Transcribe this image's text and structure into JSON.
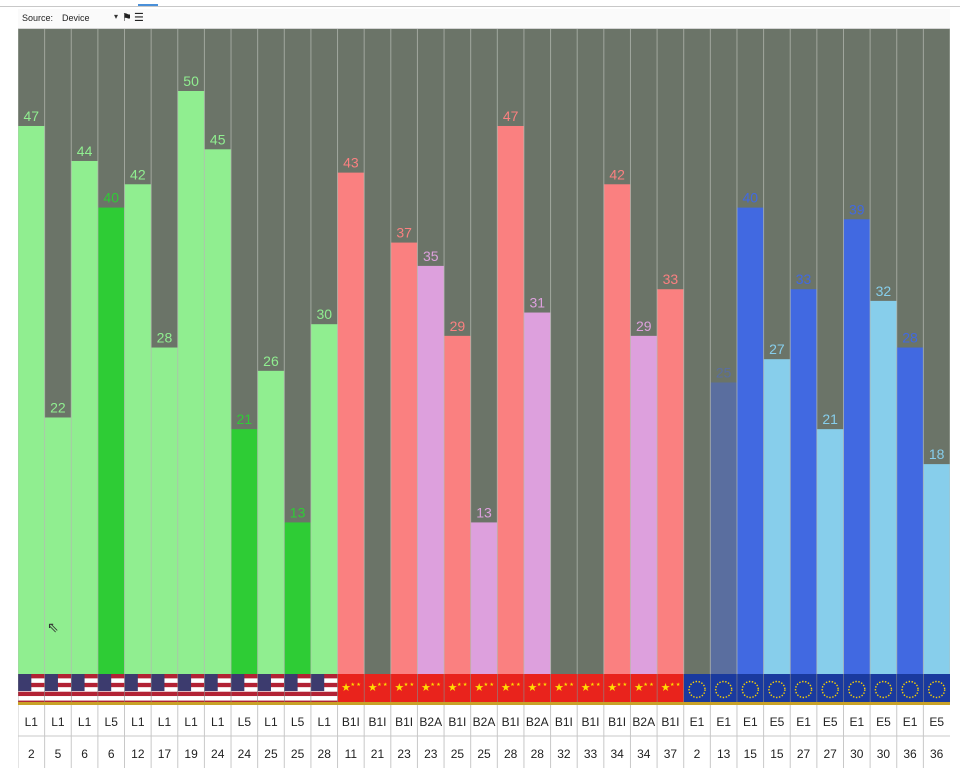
{
  "toolbar": {
    "source_label": "Source:",
    "source_value": "Device",
    "dropdown_icon": "chevron-down-icon",
    "tool_icons": [
      "flag-icon",
      "list-icon"
    ]
  },
  "colors": {
    "background": "#6b7468",
    "light_green": "#90ee90",
    "dark_green": "#2ecc35",
    "salmon": "#fa8080",
    "plum": "#dda0dd",
    "light_blue": "#87ceeb",
    "royal_blue": "#4169e1",
    "slate_blue": "#5a6e9f"
  },
  "chart_data": {
    "type": "bar",
    "ylim": [
      0,
      55
    ],
    "grid": "vertical column separators",
    "bars": [
      {
        "top": "L1",
        "bottom": "2",
        "value": 47,
        "color": "light_green",
        "flag": "us"
      },
      {
        "top": "L1",
        "bottom": "5",
        "value": 22,
        "color": "light_green",
        "flag": "us"
      },
      {
        "top": "L1",
        "bottom": "6",
        "value": 44,
        "color": "light_green",
        "flag": "us"
      },
      {
        "top": "L5",
        "bottom": "6",
        "value": 40,
        "color": "dark_green",
        "flag": "us"
      },
      {
        "top": "L1",
        "bottom": "12",
        "value": 42,
        "color": "light_green",
        "flag": "us"
      },
      {
        "top": "L1",
        "bottom": "17",
        "value": 28,
        "color": "light_green",
        "flag": "us"
      },
      {
        "top": "L1",
        "bottom": "19",
        "value": 50,
        "color": "light_green",
        "flag": "us"
      },
      {
        "top": "L1",
        "bottom": "24",
        "value": 45,
        "color": "light_green",
        "flag": "us"
      },
      {
        "top": "L5",
        "bottom": "24",
        "value": 21,
        "color": "dark_green",
        "flag": "us"
      },
      {
        "top": "L1",
        "bottom": "25",
        "value": 26,
        "color": "light_green",
        "flag": "us"
      },
      {
        "top": "L5",
        "bottom": "25",
        "value": 13,
        "color": "dark_green",
        "flag": "us"
      },
      {
        "top": "L1",
        "bottom": "28",
        "value": 30,
        "color": "light_green",
        "flag": "us"
      },
      {
        "top": "B1I",
        "bottom": "11",
        "value": 43,
        "color": "salmon",
        "flag": "cn"
      },
      {
        "top": "B1I",
        "bottom": "21",
        "value": null,
        "color": "salmon",
        "flag": "cn"
      },
      {
        "top": "B1I",
        "bottom": "23",
        "value": 37,
        "color": "salmon",
        "flag": "cn"
      },
      {
        "top": "B2A",
        "bottom": "23",
        "value": 35,
        "color": "plum",
        "flag": "cn"
      },
      {
        "top": "B1I",
        "bottom": "25",
        "value": 29,
        "color": "salmon",
        "flag": "cn"
      },
      {
        "top": "B2A",
        "bottom": "25",
        "value": 13,
        "color": "plum",
        "flag": "cn"
      },
      {
        "top": "B1I",
        "bottom": "28",
        "value": 47,
        "color": "salmon",
        "flag": "cn"
      },
      {
        "top": "B2A",
        "bottom": "28",
        "value": 31,
        "color": "plum",
        "flag": "cn"
      },
      {
        "top": "B1I",
        "bottom": "32",
        "value": null,
        "color": "salmon",
        "flag": "cn"
      },
      {
        "top": "B1I",
        "bottom": "33",
        "value": null,
        "color": "salmon",
        "flag": "cn"
      },
      {
        "top": "B1I",
        "bottom": "34",
        "value": 42,
        "color": "salmon",
        "flag": "cn"
      },
      {
        "top": "B2A",
        "bottom": "34",
        "value": 29,
        "color": "plum",
        "flag": "cn"
      },
      {
        "top": "B1I",
        "bottom": "37",
        "value": 33,
        "color": "salmon",
        "flag": "cn"
      },
      {
        "top": "E1",
        "bottom": "2",
        "value": null,
        "color": "royal_blue",
        "flag": "eu"
      },
      {
        "top": "E1",
        "bottom": "13",
        "value": 25,
        "color": "slate_blue",
        "flag": "eu"
      },
      {
        "top": "E1",
        "bottom": "15",
        "value": 40,
        "color": "royal_blue",
        "flag": "eu"
      },
      {
        "top": "E5",
        "bottom": "15",
        "value": 27,
        "color": "light_blue",
        "flag": "eu"
      },
      {
        "top": "E1",
        "bottom": "27",
        "value": 33,
        "color": "royal_blue",
        "flag": "eu"
      },
      {
        "top": "E5",
        "bottom": "27",
        "value": 21,
        "color": "light_blue",
        "flag": "eu"
      },
      {
        "top": "E1",
        "bottom": "30",
        "value": 39,
        "color": "royal_blue",
        "flag": "eu"
      },
      {
        "top": "E5",
        "bottom": "30",
        "value": 32,
        "color": "light_blue",
        "flag": "eu"
      },
      {
        "top": "E1",
        "bottom": "36",
        "value": 28,
        "color": "royal_blue",
        "flag": "eu"
      },
      {
        "top": "E5",
        "bottom": "36",
        "value": 18,
        "color": "light_blue",
        "flag": "eu"
      }
    ]
  }
}
